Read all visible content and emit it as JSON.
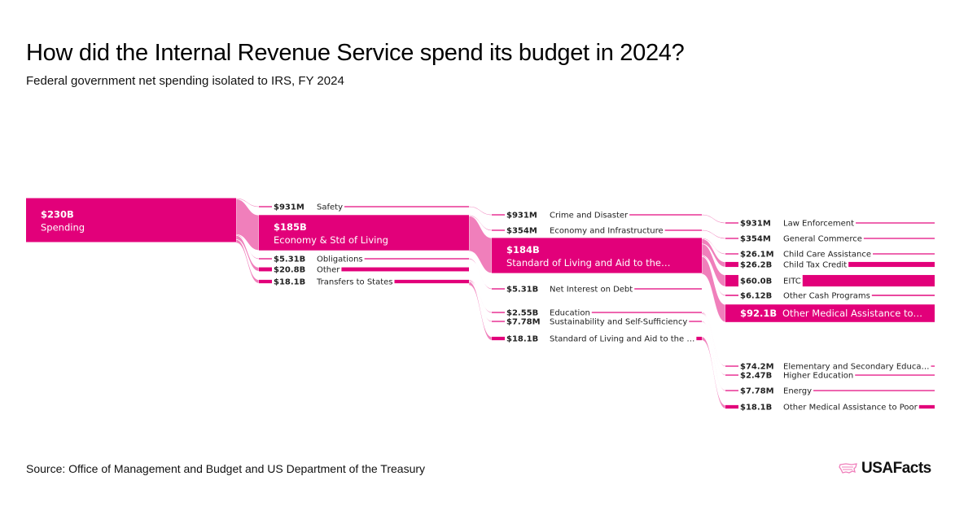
{
  "header": {
    "title": "How did the Internal Revenue Service spend its budget in 2024?",
    "subtitle": "Federal government net spending isolated to IRS, FY 2024"
  },
  "footer": {
    "source": "Source: Office of Management and Budget and US Department of the Treasury",
    "logo_text": "USAFacts"
  },
  "colors": {
    "node": "#e2007a",
    "flow": "#f07fbb",
    "text": "#222222"
  },
  "chart_data": {
    "type": "sankey",
    "title": "How did the Internal Revenue Service spend its budget in 2024?",
    "subtitle": "Federal government net spending isolated to IRS, FY 2024",
    "units": "USD",
    "columns": [
      [
        {
          "id": "spending",
          "value_label": "$230B",
          "label": "Spending",
          "value": 230000,
          "highlight": true
        }
      ],
      [
        {
          "id": "safety",
          "value_label": "$931M",
          "label": "Safety",
          "value": 931
        },
        {
          "id": "econ",
          "value_label": "$185B",
          "label": "Economy & Std of Living",
          "value": 185000,
          "highlight": true
        },
        {
          "id": "oblig",
          "value_label": "$5.31B",
          "label": "Obligations",
          "value": 5310
        },
        {
          "id": "other",
          "value_label": "$20.8B",
          "label": "Other",
          "value": 20800
        },
        {
          "id": "transfers",
          "value_label": "$18.1B",
          "label": "Transfers to States",
          "value": 18100
        }
      ],
      [
        {
          "id": "crime",
          "value_label": "$931M",
          "label": "Crime and Disaster",
          "value": 931
        },
        {
          "id": "econinfra",
          "value_label": "$354M",
          "label": "Economy and Infrastructure",
          "value": 354
        },
        {
          "id": "stdliv",
          "value_label": "$184B",
          "label": "Standard of Living and Aid to the…",
          "value": 184000,
          "highlight": true
        },
        {
          "id": "netint",
          "value_label": "$5.31B",
          "label": "Net Interest on Debt",
          "value": 5310
        },
        {
          "id": "edu",
          "value_label": "$2.55B",
          "label": "Education",
          "value": 2550
        },
        {
          "id": "sust",
          "value_label": "$7.78M",
          "label": "Sustainability and Self-Sufficiency",
          "value": 7.78
        },
        {
          "id": "stdliv2",
          "value_label": "$18.1B",
          "label": "Standard of Living and Aid to the …",
          "value": 18100
        }
      ],
      [
        {
          "id": "law",
          "value_label": "$931M",
          "label": "Law Enforcement",
          "value": 931
        },
        {
          "id": "gencom",
          "value_label": "$354M",
          "label": "General Commerce",
          "value": 354
        },
        {
          "id": "childcare",
          "value_label": "$26.1M",
          "label": "Child Care Assistance",
          "value": 26.1
        },
        {
          "id": "ctc",
          "value_label": "$26.2B",
          "label": "Child Tax Credit",
          "value": 26200
        },
        {
          "id": "eitc",
          "value_label": "$60.0B",
          "label": "EITC",
          "value": 60000
        },
        {
          "id": "othercash",
          "value_label": "$6.12B",
          "label": "Other Cash Programs",
          "value": 6120
        },
        {
          "id": "othermed",
          "value_label": "$92.1B",
          "label": "Other Medical Assistance to…",
          "value": 92100,
          "highlight": true
        },
        {
          "id": "elem",
          "value_label": "$74.2M",
          "label": "Elementary and Secondary Educa…",
          "value": 74.2
        },
        {
          "id": "higher",
          "value_label": "$2.47B",
          "label": "Higher Education",
          "value": 2470
        },
        {
          "id": "energy",
          "value_label": "$7.78M",
          "label": "Energy",
          "value": 7.78
        },
        {
          "id": "othermed2",
          "value_label": "$18.1B",
          "label": "Other Medical Assistance to Poor",
          "value": 18100
        }
      ]
    ],
    "links": [
      {
        "source": "spending",
        "target": "safety",
        "value": 931
      },
      {
        "source": "spending",
        "target": "econ",
        "value": 185000
      },
      {
        "source": "spending",
        "target": "oblig",
        "value": 5310
      },
      {
        "source": "spending",
        "target": "other",
        "value": 20800
      },
      {
        "source": "spending",
        "target": "transfers",
        "value": 18100
      },
      {
        "source": "safety",
        "target": "crime",
        "value": 931
      },
      {
        "source": "econ",
        "target": "econinfra",
        "value": 354
      },
      {
        "source": "econ",
        "target": "stdliv",
        "value": 184000
      },
      {
        "source": "oblig",
        "target": "netint",
        "value": 5310
      },
      {
        "source": "transfers",
        "target": "edu",
        "value": 2550
      },
      {
        "source": "transfers",
        "target": "sust",
        "value": 7.78
      },
      {
        "source": "transfers",
        "target": "stdliv2",
        "value": 18100
      },
      {
        "source": "crime",
        "target": "law",
        "value": 931
      },
      {
        "source": "econinfra",
        "target": "gencom",
        "value": 354
      },
      {
        "source": "stdliv",
        "target": "childcare",
        "value": 26.1
      },
      {
        "source": "stdliv",
        "target": "ctc",
        "value": 26200
      },
      {
        "source": "stdliv",
        "target": "eitc",
        "value": 60000
      },
      {
        "source": "stdliv",
        "target": "othercash",
        "value": 6120
      },
      {
        "source": "stdliv",
        "target": "othermed",
        "value": 92100
      },
      {
        "source": "edu",
        "target": "elem",
        "value": 74.2
      },
      {
        "source": "edu",
        "target": "higher",
        "value": 2470
      },
      {
        "source": "sust",
        "target": "energy",
        "value": 7.78
      },
      {
        "source": "stdliv2",
        "target": "othermed2",
        "value": 18100
      }
    ]
  }
}
